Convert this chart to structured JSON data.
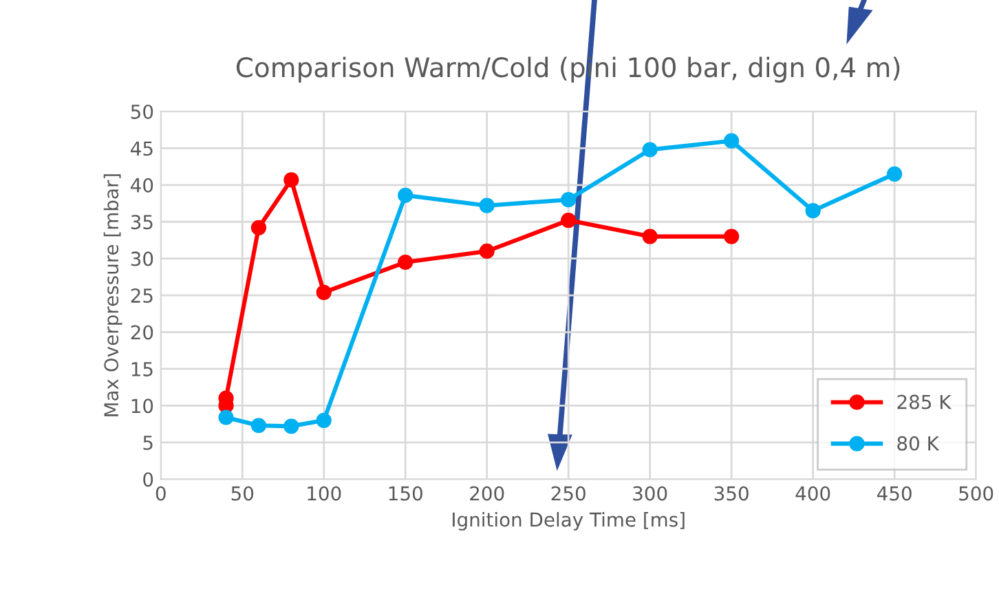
{
  "chart_data": {
    "type": "line",
    "title": "Comparison Warm/Cold (pini 100 bar, dign 0,4 m)",
    "xlabel": "Ignition Delay Time [ms]",
    "ylabel": "Max Overpressure [mbar]",
    "series": [
      {
        "name": "285 K",
        "color": "#ff0000",
        "x": [
          40,
          40,
          60,
          80,
          100,
          150,
          200,
          250,
          300,
          350
        ],
        "values": [
          10,
          11,
          34.2,
          40.7,
          25.4,
          29.5,
          31,
          35.2,
          33,
          33
        ]
      },
      {
        "name": "80 K",
        "color": "#00b0f0",
        "x": [
          40,
          60,
          80,
          100,
          150,
          200,
          250,
          300,
          350,
          400,
          450
        ],
        "values": [
          8.4,
          7.3,
          7.2,
          8,
          38.6,
          37.2,
          38,
          44.8,
          46,
          36.5,
          41.5
        ]
      }
    ],
    "xlim": [
      0,
      500
    ],
    "xticks": [
      0,
      50,
      100,
      150,
      200,
      250,
      300,
      350,
      400,
      450,
      500
    ],
    "ylim": [
      0,
      50
    ],
    "yticks": [
      0,
      5,
      10,
      15,
      20,
      25,
      30,
      35,
      40,
      45,
      50
    ],
    "grid": true,
    "legend": "bottom right",
    "marker": "circle",
    "line_style": "solid"
  }
}
